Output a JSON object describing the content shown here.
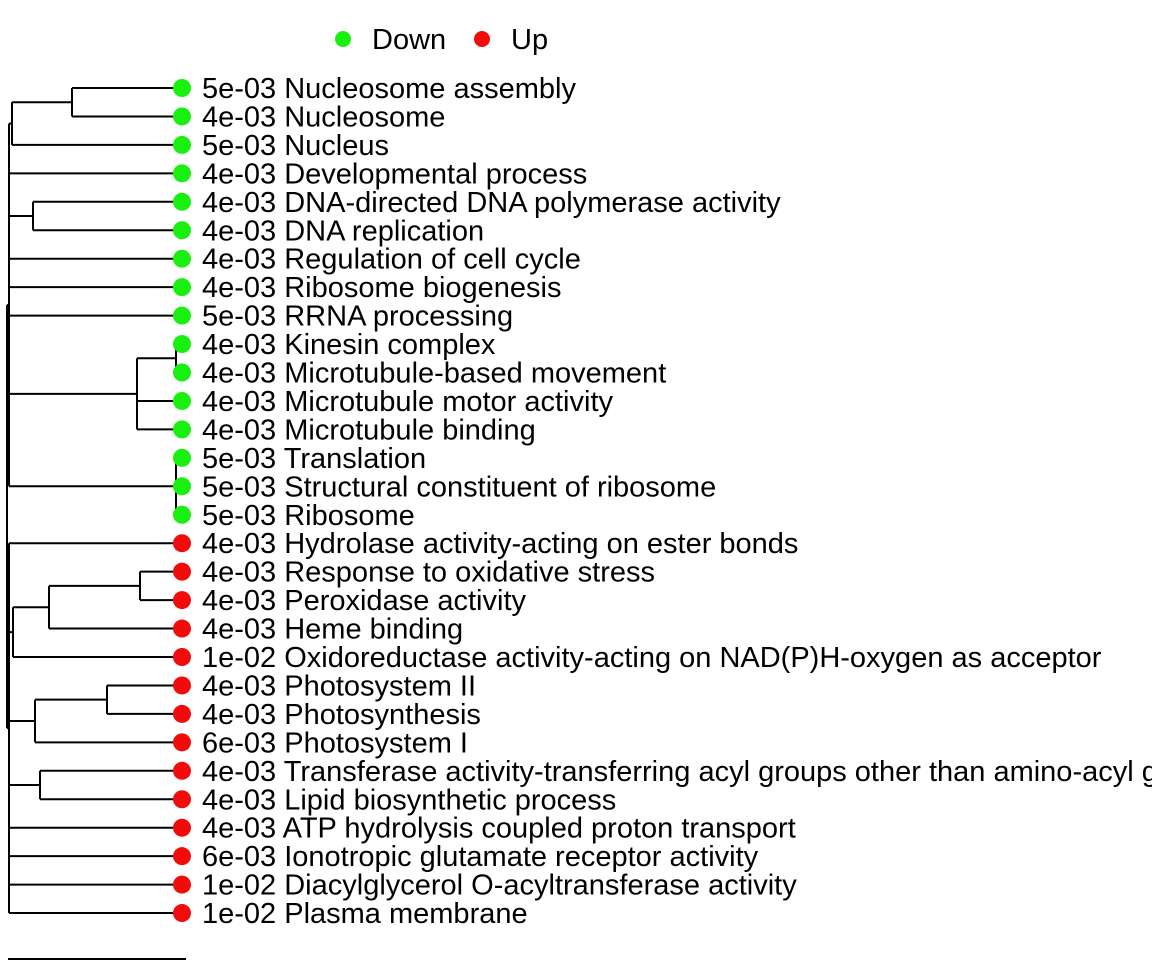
{
  "legend": {
    "items": [
      {
        "label": "Down",
        "color": "#1AF00F"
      },
      {
        "label": "Up",
        "color": "#F20B0B"
      }
    ]
  },
  "colors": {
    "down": "#1AF00F",
    "up": "#F20B0B",
    "line": "#000000"
  },
  "tree": {
    "leaves": [
      {
        "pvalue": "5e-03",
        "term": "Nucleosome assembly",
        "direction": "down"
      },
      {
        "pvalue": "4e-03",
        "term": "Nucleosome",
        "direction": "down"
      },
      {
        "pvalue": "5e-03",
        "term": "Nucleus",
        "direction": "down"
      },
      {
        "pvalue": "4e-03",
        "term": "Developmental process",
        "direction": "down"
      },
      {
        "pvalue": "4e-03",
        "term": "DNA-directed DNA polymerase activity",
        "direction": "down"
      },
      {
        "pvalue": "4e-03",
        "term": "DNA replication",
        "direction": "down"
      },
      {
        "pvalue": "4e-03",
        "term": "Regulation of cell cycle",
        "direction": "down"
      },
      {
        "pvalue": "4e-03",
        "term": "Ribosome biogenesis",
        "direction": "down"
      },
      {
        "pvalue": "5e-03",
        "term": "RRNA processing",
        "direction": "down"
      },
      {
        "pvalue": "4e-03",
        "term": "Kinesin complex",
        "direction": "down"
      },
      {
        "pvalue": "4e-03",
        "term": "Microtubule-based movement",
        "direction": "down"
      },
      {
        "pvalue": "4e-03",
        "term": "Microtubule motor activity",
        "direction": "down"
      },
      {
        "pvalue": "4e-03",
        "term": "Microtubule binding",
        "direction": "down"
      },
      {
        "pvalue": "5e-03",
        "term": "Translation",
        "direction": "down"
      },
      {
        "pvalue": "5e-03",
        "term": "Structural constituent of ribosome",
        "direction": "down"
      },
      {
        "pvalue": "5e-03",
        "term": "Ribosome",
        "direction": "down"
      },
      {
        "pvalue": "4e-03",
        "term": "Hydrolase activity-acting on ester bonds",
        "direction": "up"
      },
      {
        "pvalue": "4e-03",
        "term": "Response to oxidative stress",
        "direction": "up"
      },
      {
        "pvalue": "4e-03",
        "term": "Peroxidase activity",
        "direction": "up"
      },
      {
        "pvalue": "4e-03",
        "term": "Heme binding",
        "direction": "up"
      },
      {
        "pvalue": "1e-02",
        "term": "Oxidoreductase activity-acting on NAD(P)H-oxygen as acceptor",
        "direction": "up"
      },
      {
        "pvalue": "4e-03",
        "term": "Photosystem II",
        "direction": "up"
      },
      {
        "pvalue": "4e-03",
        "term": "Photosynthesis",
        "direction": "up"
      },
      {
        "pvalue": "6e-03",
        "term": "Photosystem I",
        "direction": "up"
      },
      {
        "pvalue": "4e-03",
        "term": "Transferase activity-transferring acyl groups other than amino-acyl groups",
        "direction": "up"
      },
      {
        "pvalue": "4e-03",
        "term": "Lipid biosynthetic process",
        "direction": "up"
      },
      {
        "pvalue": "4e-03",
        "term": "ATP hydrolysis coupled proton transport",
        "direction": "up"
      },
      {
        "pvalue": "6e-03",
        "term": "Ionotropic glutamate receptor activity",
        "direction": "up"
      },
      {
        "pvalue": "1e-02",
        "term": "Diacylglycerol O-acyltransferase activity",
        "direction": "up"
      },
      {
        "pvalue": "1e-02",
        "term": "Plasma membrane",
        "direction": "up"
      }
    ]
  }
}
